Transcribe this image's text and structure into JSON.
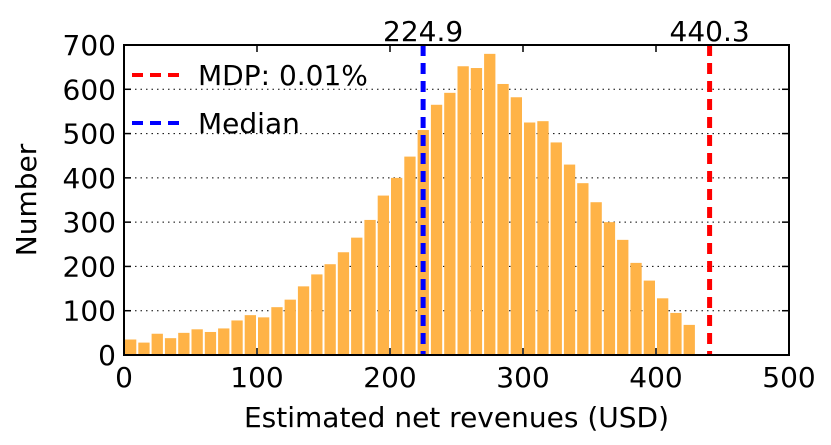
{
  "chart_data": {
    "type": "bar",
    "subtype": "histogram",
    "title": "",
    "xlabel": "Estimated net revenues (USD)",
    "ylabel": "Number",
    "xlim": [
      0,
      500
    ],
    "ylim": [
      0,
      700
    ],
    "xticks": [
      "0",
      "100",
      "200",
      "300",
      "400",
      "500"
    ],
    "yticks": [
      "0",
      "100",
      "200",
      "300",
      "400",
      "500",
      "600",
      "700"
    ],
    "grid": "horizontal dotted",
    "bin_width": 10,
    "bin_starts": [
      0,
      10,
      20,
      30,
      40,
      50,
      60,
      70,
      80,
      90,
      100,
      110,
      120,
      130,
      140,
      150,
      160,
      170,
      180,
      190,
      200,
      210,
      220,
      230,
      240,
      250,
      260,
      270,
      280,
      290,
      300,
      310,
      320,
      330,
      340,
      350,
      360,
      370,
      380,
      390,
      400,
      410,
      420
    ],
    "values": [
      35,
      28,
      48,
      38,
      50,
      58,
      52,
      60,
      78,
      90,
      85,
      108,
      125,
      155,
      182,
      205,
      232,
      265,
      305,
      360,
      400,
      448,
      508,
      565,
      592,
      652,
      648,
      680,
      612,
      582,
      525,
      528,
      480,
      430,
      388,
      345,
      300,
      260,
      208,
      168,
      128,
      95,
      68
    ],
    "bar_color": "#ffb347",
    "reference_lines": [
      {
        "name": "Median",
        "value": 224.9,
        "label": "224.9",
        "color": "#0000ff",
        "legend": "Median"
      },
      {
        "name": "MDP",
        "value": 440.3,
        "label": "440.3",
        "color": "#ff0000",
        "legend": "MDP: 0.01%"
      }
    ],
    "legend": {
      "position": "top-left",
      "entries": [
        {
          "label": "MDP: 0.01%",
          "color": "#ff0000"
        },
        {
          "label": "Median",
          "color": "#0000ff"
        }
      ]
    }
  }
}
